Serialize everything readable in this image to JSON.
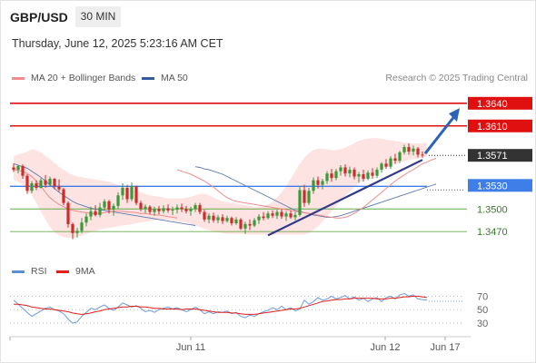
{
  "header": {
    "symbol": "GBP/USD",
    "timeframe": "30 MIN",
    "datetime": "Thursday, June 12, 2025 5:23:16 AM CET"
  },
  "legend": {
    "ma_bollinger": {
      "label": "MA 20 + Bollinger Bands",
      "color": "#f08c8c"
    },
    "ma50": {
      "label": "MA 50",
      "color": "#2f5d9e"
    }
  },
  "credit": "Research © 2025 Trading Central",
  "rsi_legend": {
    "rsi": {
      "label": "RSI",
      "color": "#5b8fd6"
    },
    "ma9": {
      "label": "9MA",
      "color": "#e0201c"
    }
  },
  "colors": {
    "bull": "#3a9a3a",
    "bear": "#d02a2a",
    "resistance": "#e01010",
    "pivot": "#3f7ee8",
    "support": "#6aaa4a",
    "current": "#333333",
    "trend": "#303a8c",
    "arrow": "#2a63b8"
  },
  "chart_data": [
    {
      "type": "candlestick",
      "title": "",
      "x_ticks": [
        "Jun 11",
        "Jun 12",
        "Jun 17"
      ],
      "y_range": [
        1.3445,
        1.3665
      ],
      "levels": [
        {
          "value": "1.3640",
          "kind": "resistance"
        },
        {
          "value": "1.3610",
          "kind": "resistance"
        },
        {
          "value": "1.3571",
          "kind": "current"
        },
        {
          "value": "1.3530",
          "kind": "pivot"
        },
        {
          "value": "1.3500",
          "kind": "support"
        },
        {
          "value": "1.3470",
          "kind": "support"
        }
      ],
      "candles": [
        [
          1.3555,
          1.356,
          1.3549,
          1.3552
        ],
        [
          1.3552,
          1.3558,
          1.3547,
          1.3557
        ],
        [
          1.3557,
          1.3559,
          1.354,
          1.3544
        ],
        [
          1.3544,
          1.3546,
          1.352,
          1.3524
        ],
        [
          1.3524,
          1.3537,
          1.3521,
          1.3534
        ],
        [
          1.3534,
          1.3538,
          1.3525,
          1.3528
        ],
        [
          1.3528,
          1.3541,
          1.3527,
          1.3538
        ],
        [
          1.3538,
          1.3545,
          1.3528,
          1.3532
        ],
        [
          1.3532,
          1.3543,
          1.353,
          1.354
        ],
        [
          1.354,
          1.3541,
          1.3526,
          1.353
        ],
        [
          1.353,
          1.3539,
          1.3523,
          1.3526
        ],
        [
          1.3526,
          1.3528,
          1.3505,
          1.3508
        ],
        [
          1.3508,
          1.351,
          1.3475,
          1.348
        ],
        [
          1.348,
          1.3482,
          1.346,
          1.3468
        ],
        [
          1.3468,
          1.3475,
          1.3462,
          1.3471
        ],
        [
          1.3471,
          1.3488,
          1.3468,
          1.3482
        ],
        [
          1.3482,
          1.3494,
          1.3477,
          1.349
        ],
        [
          1.349,
          1.3503,
          1.3485,
          1.3497
        ],
        [
          1.3497,
          1.3505,
          1.349,
          1.3492
        ],
        [
          1.3492,
          1.3508,
          1.3489,
          1.3502
        ],
        [
          1.3502,
          1.3513,
          1.3498,
          1.351
        ],
        [
          1.351,
          1.3512,
          1.3494,
          1.3499
        ],
        [
          1.3499,
          1.3507,
          1.3491,
          1.3504
        ],
        [
          1.3504,
          1.3522,
          1.35,
          1.3518
        ],
        [
          1.3518,
          1.3534,
          1.3512,
          1.3528
        ],
        [
          1.3528,
          1.3532,
          1.3508,
          1.3513
        ],
        [
          1.3513,
          1.3535,
          1.351,
          1.353
        ],
        [
          1.353,
          1.3531,
          1.3505,
          1.3508
        ],
        [
          1.3508,
          1.3511,
          1.3497,
          1.35
        ],
        [
          1.35,
          1.3506,
          1.3494,
          1.3503
        ],
        [
          1.3503,
          1.3505,
          1.3493,
          1.3496
        ],
        [
          1.3496,
          1.3503,
          1.3491,
          1.35
        ],
        [
          1.35,
          1.3504,
          1.3493,
          1.3497
        ],
        [
          1.3497,
          1.3505,
          1.3494,
          1.3501
        ],
        [
          1.3501,
          1.3506,
          1.3495,
          1.3498
        ],
        [
          1.3498,
          1.3503,
          1.3492,
          1.3499
        ],
        [
          1.3499,
          1.3506,
          1.3494,
          1.3502
        ],
        [
          1.3502,
          1.3507,
          1.3496,
          1.35
        ],
        [
          1.35,
          1.3504,
          1.3494,
          1.3497
        ],
        [
          1.3497,
          1.3503,
          1.3491,
          1.35
        ],
        [
          1.35,
          1.3508,
          1.3496,
          1.3505
        ],
        [
          1.3505,
          1.3508,
          1.3493,
          1.3496
        ],
        [
          1.3496,
          1.3499,
          1.3483,
          1.3486
        ],
        [
          1.3486,
          1.3494,
          1.3481,
          1.3491
        ],
        [
          1.3491,
          1.3495,
          1.3482,
          1.3485
        ],
        [
          1.3485,
          1.3492,
          1.3481,
          1.3489
        ],
        [
          1.3489,
          1.3493,
          1.348,
          1.3484
        ],
        [
          1.3484,
          1.3491,
          1.3482,
          1.3488
        ],
        [
          1.3488,
          1.349,
          1.3478,
          1.3481
        ],
        [
          1.3481,
          1.3489,
          1.3479,
          1.3486
        ],
        [
          1.3486,
          1.3488,
          1.3472,
          1.3474
        ],
        [
          1.3474,
          1.3483,
          1.3467,
          1.348
        ],
        [
          1.348,
          1.3486,
          1.3472,
          1.3478
        ],
        [
          1.3478,
          1.3488,
          1.3476,
          1.3485
        ],
        [
          1.3485,
          1.3493,
          1.348,
          1.349
        ],
        [
          1.349,
          1.3496,
          1.3485,
          1.3488
        ],
        [
          1.3488,
          1.3497,
          1.3486,
          1.3494
        ],
        [
          1.3494,
          1.3498,
          1.3488,
          1.3491
        ],
        [
          1.3491,
          1.3499,
          1.3487,
          1.3496
        ],
        [
          1.3496,
          1.35,
          1.3487,
          1.349
        ],
        [
          1.349,
          1.3497,
          1.3484,
          1.3494
        ],
        [
          1.3494,
          1.3498,
          1.3487,
          1.3489
        ],
        [
          1.3489,
          1.3496,
          1.3485,
          1.3492
        ],
        [
          1.3492,
          1.353,
          1.349,
          1.3525
        ],
        [
          1.3525,
          1.3532,
          1.3503,
          1.3508
        ],
        [
          1.3508,
          1.3528,
          1.3505,
          1.3524
        ],
        [
          1.3524,
          1.3542,
          1.352,
          1.3538
        ],
        [
          1.3538,
          1.3543,
          1.3527,
          1.3532
        ],
        [
          1.3532,
          1.354,
          1.3526,
          1.3537
        ],
        [
          1.3537,
          1.355,
          1.3533,
          1.3547
        ],
        [
          1.3547,
          1.3553,
          1.3536,
          1.3541
        ],
        [
          1.3541,
          1.3553,
          1.3538,
          1.355
        ],
        [
          1.355,
          1.3558,
          1.3544,
          1.3555
        ],
        [
          1.3555,
          1.3559,
          1.3543,
          1.3547
        ],
        [
          1.3547,
          1.3556,
          1.3542,
          1.3552
        ],
        [
          1.3552,
          1.3555,
          1.3539,
          1.3543
        ],
        [
          1.3543,
          1.3549,
          1.3535,
          1.3546
        ],
        [
          1.3546,
          1.3552,
          1.3536,
          1.354
        ],
        [
          1.354,
          1.3551,
          1.3538,
          1.3548
        ],
        [
          1.3548,
          1.3554,
          1.354,
          1.3544
        ],
        [
          1.3544,
          1.3555,
          1.3541,
          1.3552
        ],
        [
          1.3552,
          1.3562,
          1.3548,
          1.356
        ],
        [
          1.356,
          1.3566,
          1.3553,
          1.3556
        ],
        [
          1.3556,
          1.357,
          1.3553,
          1.3567
        ],
        [
          1.3567,
          1.3573,
          1.356,
          1.3564
        ],
        [
          1.3564,
          1.3577,
          1.3561,
          1.3575
        ],
        [
          1.3575,
          1.3585,
          1.3572,
          1.3582
        ],
        [
          1.3582,
          1.3587,
          1.3572,
          1.3576
        ],
        [
          1.3576,
          1.3584,
          1.3571,
          1.358
        ],
        [
          1.358,
          1.3582,
          1.3568,
          1.3572
        ],
        [
          1.3572,
          1.3576,
          1.3568,
          1.3571
        ]
      ],
      "ma20": [
        1.3552,
        1.355,
        1.3548,
        1.3546,
        1.3543,
        1.354,
        1.3537,
        1.3533,
        1.3529,
        1.3524,
        1.3519,
        1.3515,
        1.3512,
        1.351,
        1.3509,
        1.3508,
        1.3507,
        1.3506,
        1.3505,
        1.3504,
        1.3503,
        1.3502,
        1.3501,
        1.35,
        1.3499,
        1.3498,
        1.3497,
        1.3496,
        1.3495,
        1.3494,
        1.3493,
        1.3492,
        1.3491,
        1.349,
        1.3489,
        1.3488,
        1.3488,
        1.3489,
        1.3491,
        1.3494,
        1.3498,
        1.3502,
        1.3507,
        1.3512,
        1.3517,
        1.3522,
        1.3527,
        1.3532,
        1.3537,
        1.3541,
        1.3545,
        1.3549,
        1.3552,
        1.3556,
        1.356,
        1.3562,
        1.3565,
        1.3567
      ],
      "ma20_start": 36,
      "bb_upper": [
        1.357,
        1.3572,
        1.3574,
        1.3576,
        1.3579,
        1.3578,
        1.3575,
        1.357,
        1.3566,
        1.3561,
        1.3556,
        1.3552,
        1.3548,
        1.3545,
        1.3543,
        1.3542,
        1.3541,
        1.354,
        1.3539,
        1.3538,
        1.3537,
        1.3536,
        1.3534,
        1.3532,
        1.353,
        1.3528,
        1.3526,
        1.3524,
        1.3522,
        1.352,
        1.3518,
        1.3517,
        1.3516,
        1.3515,
        1.3514,
        1.3514,
        1.3514,
        1.3514,
        1.3515,
        1.3516,
        1.3518,
        1.352,
        1.352,
        1.3518,
        1.3515,
        1.3512,
        1.351,
        1.3509,
        1.3508,
        1.3507,
        1.3506,
        1.3505,
        1.3504,
        1.3503,
        1.3503,
        1.3504,
        1.3506,
        1.3509,
        1.3515,
        1.3522,
        1.353,
        1.354,
        1.355,
        1.356,
        1.3568,
        1.3574,
        1.3578,
        1.358,
        1.358,
        1.3579,
        1.3578,
        1.3578,
        1.3579,
        1.3581,
        1.3584,
        1.3587,
        1.359,
        1.3592,
        1.3593,
        1.3594,
        1.3594,
        1.3593,
        1.3592,
        1.3591,
        1.359,
        1.3589,
        1.3588,
        1.3587,
        1.3587,
        1.3587,
        1.3587,
        1.3588
      ],
      "bb_lower": [
        1.3538,
        1.3536,
        1.3532,
        1.3526,
        1.3518,
        1.3508,
        1.3497,
        1.3486,
        1.3476,
        1.3469,
        1.3465,
        1.3463,
        1.3462,
        1.3462,
        1.3463,
        1.3465,
        1.3467,
        1.3469,
        1.3471,
        1.3473,
        1.3474,
        1.3475,
        1.3476,
        1.3477,
        1.3478,
        1.3479,
        1.348,
        1.3481,
        1.3482,
        1.3483,
        1.3484,
        1.3485,
        1.3486,
        1.3486,
        1.3486,
        1.3485,
        1.3484,
        1.3483,
        1.3482,
        1.348,
        1.3478,
        1.3476,
        1.3474,
        1.3472,
        1.347,
        1.3469,
        1.3468,
        1.3467,
        1.3467,
        1.3467,
        1.3467,
        1.3467,
        1.3466,
        1.3466,
        1.3466,
        1.3466,
        1.3466,
        1.3466,
        1.3466,
        1.3466,
        1.3466,
        1.3466,
        1.3466,
        1.3466,
        1.3466,
        1.3468,
        1.3472,
        1.3477,
        1.3483,
        1.349,
        1.3497,
        1.3504,
        1.3511,
        1.3517,
        1.3523,
        1.3529,
        1.3534,
        1.3538,
        1.3542,
        1.3546,
        1.3549,
        1.3552,
        1.3555,
        1.3557,
        1.3559,
        1.3561,
        1.3563,
        1.3565,
        1.3566,
        1.3567,
        1.3568,
        1.3569
      ],
      "ma50": [
        1.3556,
        1.3555,
        1.3553,
        1.3552,
        1.355,
        1.3548,
        1.3546,
        1.3543,
        1.354,
        1.3537,
        1.3534,
        1.3531,
        1.3528,
        1.3525,
        1.3522,
        1.3519,
        1.3516,
        1.3513,
        1.351,
        1.3507,
        1.3504,
        1.3501,
        1.3498,
        1.3497,
        1.3495,
        1.3494,
        1.3492,
        1.3491,
        1.349,
        1.3489,
        1.3489,
        1.349,
        1.3491,
        1.3493,
        1.3495,
        1.3497,
        1.3499,
        1.3501,
        1.3503,
        1.3505,
        1.3507,
        1.3509,
        1.3511,
        1.3513,
        1.3515,
        1.3517,
        1.3519,
        1.3521,
        1.3523,
        1.3525,
        1.3527,
        1.3529,
        1.3531,
        1.3533
      ],
      "trend_line": [
        [
          56,
          1.3465
        ],
        [
          90,
          1.3565
        ]
      ],
      "projection": [
        [
          90,
          1.3571
        ],
        [
          97,
          1.3636
        ]
      ]
    },
    {
      "type": "line",
      "y_ticks": [
        "70",
        "50",
        "30"
      ],
      "y_range": [
        22,
        84
      ],
      "rsi": [
        64,
        58,
        52,
        46,
        40,
        44,
        48,
        52,
        54,
        50,
        48,
        44,
        36,
        30,
        32,
        40,
        46,
        52,
        50,
        54,
        57,
        52,
        49,
        54,
        60,
        57,
        54,
        56,
        52,
        47,
        49,
        46,
        50,
        52,
        54,
        51,
        53,
        50,
        47,
        50,
        54,
        50,
        44,
        47,
        44,
        47,
        46,
        48,
        44,
        46,
        40,
        38,
        42,
        40,
        44,
        47,
        49,
        53,
        50,
        55,
        50,
        53,
        48,
        51,
        64,
        58,
        62,
        68,
        64,
        66,
        70,
        66,
        68,
        71,
        66,
        69,
        64,
        67,
        62,
        66,
        68,
        62,
        68,
        70,
        66,
        72,
        74,
        70,
        72,
        66,
        65,
        64
      ],
      "rsi_ma9": [
        58,
        58,
        57,
        56,
        54,
        53,
        52,
        51,
        51,
        50,
        49,
        48,
        47,
        45,
        44,
        43,
        44,
        45,
        47,
        48,
        50,
        51,
        52,
        53,
        54,
        54,
        55,
        55,
        54,
        54,
        53,
        52,
        52,
        51,
        51,
        51,
        51,
        50,
        51,
        51,
        51,
        50,
        49,
        48,
        47,
        46,
        46,
        46,
        45,
        45,
        44,
        43,
        43,
        43,
        44,
        45,
        46,
        47,
        48,
        49,
        50,
        51,
        51,
        52,
        54,
        56,
        58,
        60,
        62,
        63,
        64,
        65,
        65,
        66,
        66,
        67,
        67,
        67,
        67,
        67,
        66,
        66,
        66,
        67,
        67,
        68,
        69,
        69,
        70,
        70,
        69,
        68
      ]
    }
  ]
}
